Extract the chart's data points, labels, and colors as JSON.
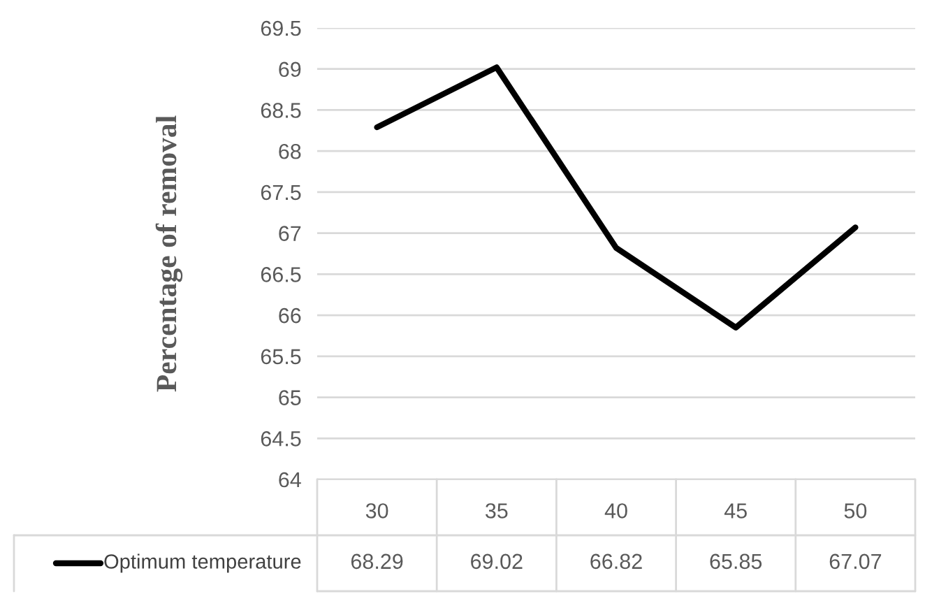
{
  "chart_data": {
    "type": "line",
    "ylabel": "Percentage of removal",
    "categories": [
      "30",
      "35",
      "40",
      "45",
      "50"
    ],
    "series": [
      {
        "name": "Optimum temperature",
        "color": "#000000",
        "values": [
          68.29,
          69.02,
          66.82,
          65.85,
          67.07
        ]
      }
    ],
    "ylim": [
      64,
      69.5
    ],
    "yticks": [
      64,
      64.5,
      65,
      65.5,
      66,
      66.5,
      67,
      67.5,
      68,
      68.5,
      69,
      69.5
    ],
    "grid": "y",
    "data_labels": true,
    "marker": "none",
    "line_style": "solid",
    "legend": "bottom"
  }
}
